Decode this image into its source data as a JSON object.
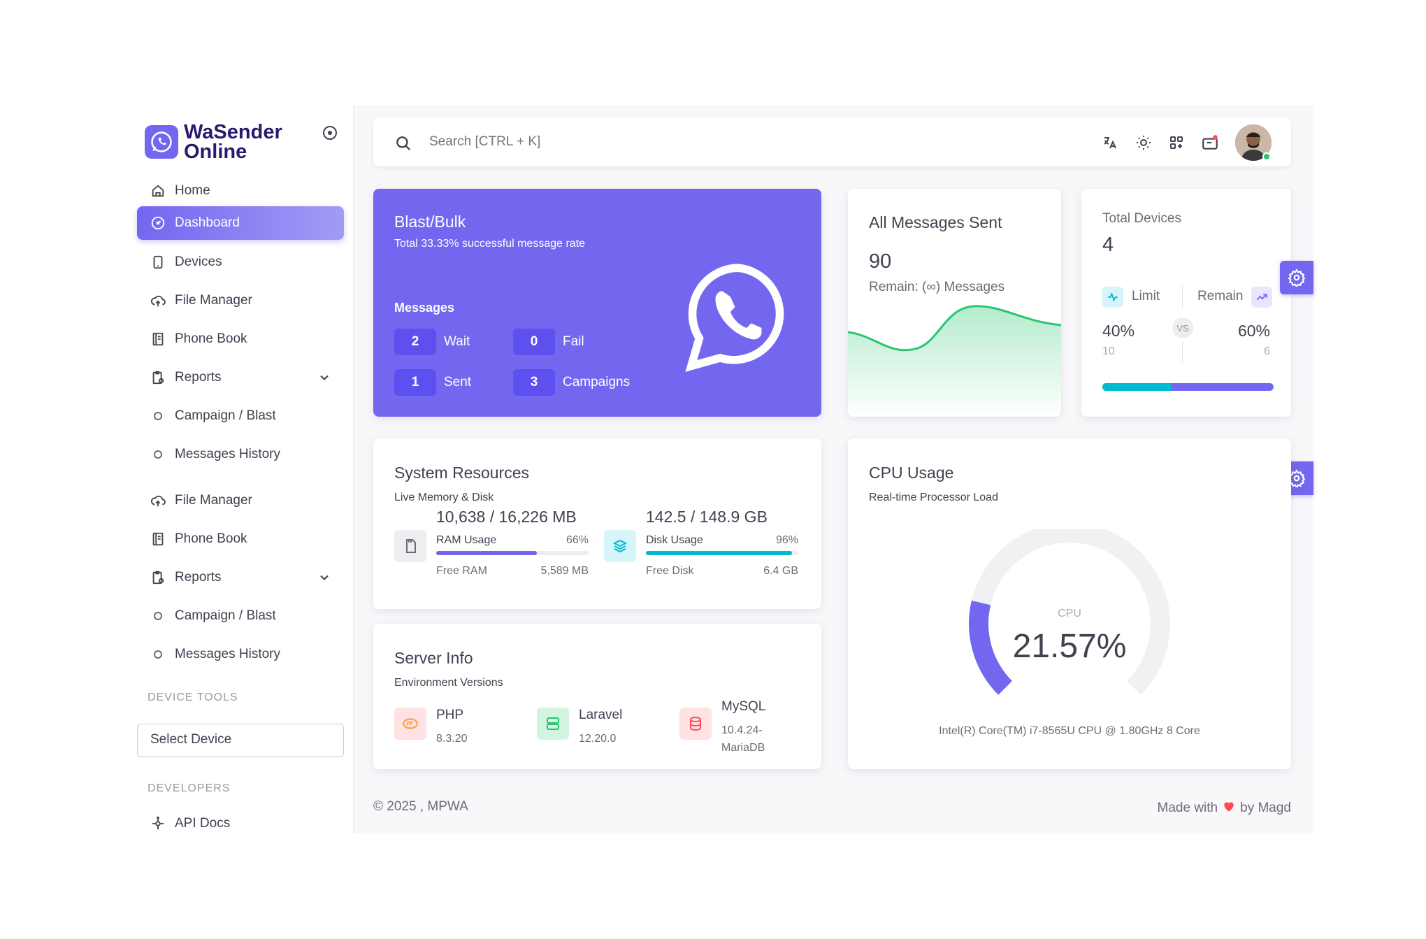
{
  "brand": {
    "name_line1": "WaSender",
    "name_line2": "Online"
  },
  "sidebar": {
    "items": [
      {
        "label": "Home"
      },
      {
        "label": "Dashboard"
      },
      {
        "label": "Devices"
      },
      {
        "label": "File Manager"
      },
      {
        "label": "Phone Book"
      },
      {
        "label": "Reports"
      },
      {
        "label": "Campaign / Blast"
      },
      {
        "label": "Messages History"
      },
      {
        "label": "File Manager"
      },
      {
        "label": "Phone Book"
      },
      {
        "label": "Reports"
      },
      {
        "label": "Campaign / Blast"
      },
      {
        "label": "Messages History"
      },
      {
        "label": "API Docs"
      }
    ],
    "section_device_tools": "DEVICE TOOLS",
    "section_developers": "DEVELOPERS",
    "select_device": "Select Device"
  },
  "search": {
    "placeholder": "Search [CTRL + K]"
  },
  "blast": {
    "title": "Blast/Bulk",
    "subtitle": "Total 33.33% successful message rate",
    "messages_label": "Messages",
    "stats": [
      {
        "value": "2",
        "label": "Wait"
      },
      {
        "value": "0",
        "label": "Fail"
      },
      {
        "value": "1",
        "label": "Sent"
      },
      {
        "value": "3",
        "label": "Campaigns"
      }
    ]
  },
  "messages_sent": {
    "title": "All Messages Sent",
    "value": "90",
    "remain": "Remain: (∞) Messages"
  },
  "devices": {
    "title": "Total Devices",
    "value": "4",
    "limit_label": "Limit",
    "remain_label": "Remain",
    "limit_pct": "40%",
    "remain_pct": "60%",
    "limit_count": "10",
    "remain_count": "6",
    "vs": "VS",
    "limit_fraction": 0.4
  },
  "system_resources": {
    "title": "System Resources",
    "subtitle": "Live Memory & Disk",
    "ram": {
      "total": "10,638 / 16,226 MB",
      "label": "RAM Usage",
      "pct": "66%",
      "free_label": "Free RAM",
      "free_value": "5,589 MB",
      "fraction": 0.66
    },
    "disk": {
      "total": "142.5 / 148.9 GB",
      "label": "Disk Usage",
      "pct": "96%",
      "free_label": "Free Disk",
      "free_value": "6.4 GB",
      "fraction": 0.96
    }
  },
  "server_info": {
    "title": "Server Info",
    "subtitle": "Environment Versions",
    "php": {
      "name": "PHP",
      "version": "8.3.20"
    },
    "laravel": {
      "name": "Laravel",
      "version": "12.20.0"
    },
    "mysql": {
      "name": "MySQL",
      "version_line1": "10.4.24-",
      "version_line2": "MariaDB"
    }
  },
  "cpu": {
    "title": "CPU Usage",
    "subtitle": "Real-time Processor Load",
    "label": "CPU",
    "value": "21.57%",
    "fraction": 0.2157,
    "model": "Intel(R) Core(TM) i7-8565U CPU @ 1.80GHz 8 Core"
  },
  "footer": {
    "copyright": "© 2025 , MPWA",
    "made_with": "Made with",
    "by": "by Magd"
  },
  "colors": {
    "primary": "#7367f0",
    "info": "#00bad1",
    "success": "#28c76f",
    "danger": "#ff4c51"
  }
}
